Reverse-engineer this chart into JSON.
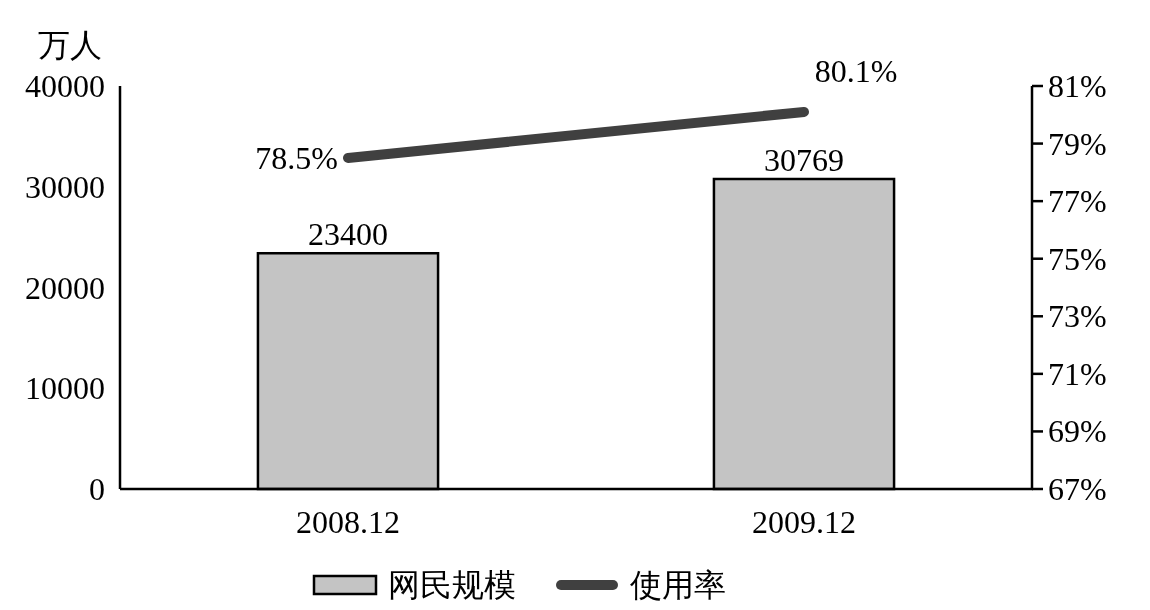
{
  "chart_data": {
    "type": "bar",
    "ylabel": "万人",
    "categories": [
      "2008.12",
      "2009.12"
    ],
    "series": [
      {
        "name": "网民规模",
        "color": "#c4c4c4",
        "values": [
          23400,
          30769
        ],
        "value_labels": [
          "23400",
          "30769"
        ]
      },
      {
        "name": "使用率",
        "type": "line",
        "axis": "y2",
        "color": "#404040",
        "values": [
          78.5,
          80.1
        ],
        "value_labels": [
          "78.5%",
          "80.1%"
        ]
      }
    ],
    "ylim": [
      0,
      40000
    ],
    "yticks": [
      0,
      10000,
      20000,
      30000,
      40000
    ],
    "y2lim": [
      67,
      81
    ],
    "y2ticks": [
      {
        "value": 67,
        "label": "67%"
      },
      {
        "value": 69,
        "label": "69%"
      },
      {
        "value": 71,
        "label": "71%"
      },
      {
        "value": 73,
        "label": "73%"
      },
      {
        "value": 75,
        "label": "75%"
      },
      {
        "value": 77,
        "label": "77%"
      },
      {
        "value": 79,
        "label": "79%"
      },
      {
        "value": 81,
        "label": "81%"
      }
    ],
    "legend": "bottom",
    "grid": false
  }
}
